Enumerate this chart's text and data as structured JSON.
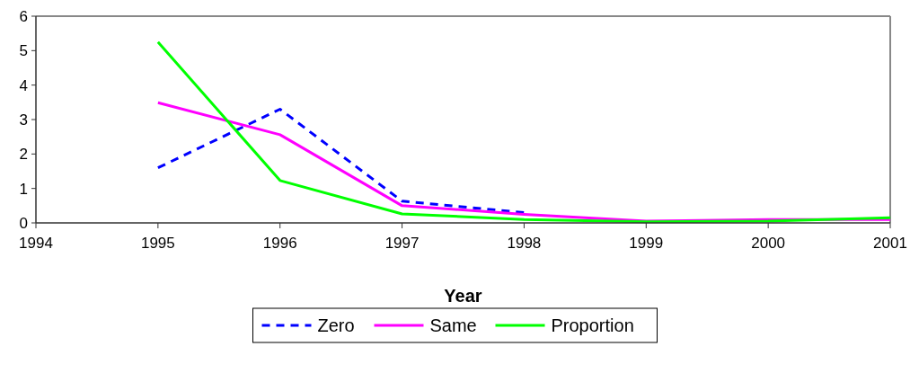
{
  "chart_data": {
    "type": "line",
    "xlabel": "Year",
    "x": [
      1995,
      1996,
      1997,
      1998,
      1999,
      2000,
      2001
    ],
    "series": [
      {
        "name": "Zero",
        "color": "#0000ff",
        "line_style": "dashed",
        "values": [
          1.6,
          3.3,
          0.63,
          0.3,
          null,
          null,
          null
        ]
      },
      {
        "name": "Same",
        "color": "#ff00ff",
        "line_style": "solid",
        "values": [
          3.49,
          2.56,
          0.5,
          0.25,
          0.05,
          0.1,
          0.1
        ]
      },
      {
        "name": "Proportion",
        "color": "#00ff00",
        "line_style": "solid",
        "values": [
          5.25,
          1.23,
          0.26,
          0.1,
          0.03,
          0.05,
          0.15
        ]
      }
    ],
    "xlim": [
      1994,
      2001
    ],
    "xticks": [
      1994,
      1995,
      1996,
      1997,
      1998,
      1999,
      2000,
      2001
    ],
    "ylim": [
      0,
      6
    ],
    "yticks": [
      0,
      1,
      2,
      3,
      4,
      5,
      6
    ],
    "grid": false,
    "legend": "bottom"
  }
}
